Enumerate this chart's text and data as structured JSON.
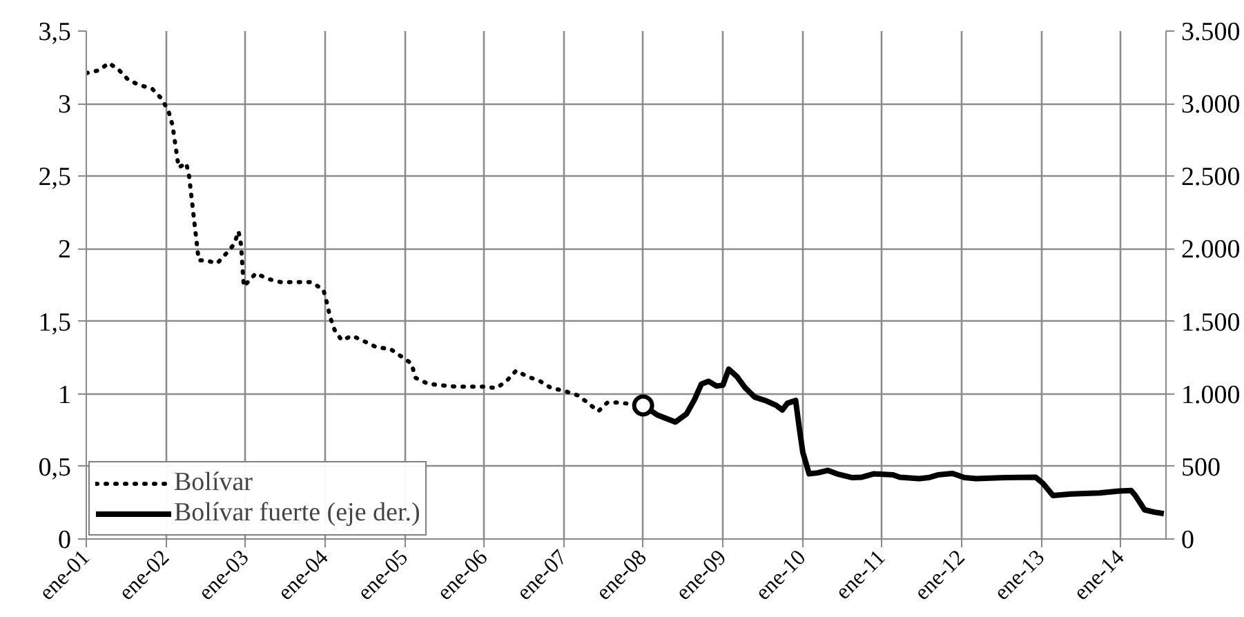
{
  "chart_data": {
    "type": "line",
    "xlim": [
      "2001-01-01",
      "2014-07-28"
    ],
    "ylim": [
      0,
      3.5
    ],
    "y2lim": [
      0,
      3500
    ],
    "xticks": [
      {
        "value": "2001-01-01",
        "label": "ene-01"
      },
      {
        "value": "2002-01-01",
        "label": "ene-02"
      },
      {
        "value": "2003-01-01",
        "label": "ene-03"
      },
      {
        "value": "2004-01-01",
        "label": "ene-04"
      },
      {
        "value": "2005-01-01",
        "label": "ene-05"
      },
      {
        "value": "2006-01-01",
        "label": "ene-06"
      },
      {
        "value": "2007-01-01",
        "label": "ene-07"
      },
      {
        "value": "2008-01-01",
        "label": "ene-08"
      },
      {
        "value": "2009-01-01",
        "label": "ene-09"
      },
      {
        "value": "2010-01-01",
        "label": "ene-10"
      },
      {
        "value": "2011-01-01",
        "label": "ene-11"
      },
      {
        "value": "2012-01-01",
        "label": "ene-12"
      },
      {
        "value": "2013-01-01",
        "label": "ene-13"
      },
      {
        "value": "2014-01-01",
        "label": "ene-14"
      }
    ],
    "yticks": [
      0,
      {
        "value": 0.5,
        "label": "0,5"
      },
      1,
      {
        "value": 1.5,
        "label": "1,5"
      },
      2,
      {
        "value": 2.5,
        "label": "2,5"
      },
      3,
      {
        "value": 3.5,
        "label": "3,5"
      }
    ],
    "y2ticks": [
      0,
      500,
      {
        "value": 1000,
        "label": "1.000"
      },
      {
        "value": 1500,
        "label": "1.500"
      },
      {
        "value": 2000,
        "label": "2.000"
      },
      {
        "value": 2500,
        "label": "2.500"
      },
      {
        "value": 3000,
        "label": "3.000"
      },
      {
        "value": 3500,
        "label": "3.500"
      }
    ],
    "grid": true,
    "legend": "bottom left",
    "series": [
      {
        "name": "Bolívar",
        "color": "#000000",
        "line_style": "dotted",
        "x": [
          "2001-01-01",
          "2001-03-01",
          "2001-04-15",
          "2001-06-01",
          "2001-07-15",
          "2001-09-01",
          "2001-11-01",
          "2001-12-15",
          "2002-01-15",
          "2002-02-01",
          "2002-03-01",
          "2002-04-05",
          "2002-04-18",
          "2002-06-01",
          "2002-07-01",
          "2002-08-25",
          "2002-10-01",
          "2002-11-10",
          "2002-12-01",
          "2002-12-12",
          "2002-12-25",
          "2003-02-18",
          "2003-04-20",
          "2003-06-12",
          "2003-09-01",
          "2003-10-28",
          "2003-12-25",
          "2004-01-10",
          "2004-01-25",
          "2004-02-15",
          "2004-03-18",
          "2004-05-06",
          "2004-07-03",
          "2004-08-27",
          "2004-10-27",
          "2005-02-01",
          "2005-02-21",
          "2005-04-18",
          "2005-06-15",
          "2005-08-21",
          "2006-01-01",
          "2006-02-27",
          "2006-04-15",
          "2006-05-28",
          "2006-07-18",
          "2006-09-12",
          "2006-11-06",
          "2007-01-06",
          "2007-03-06",
          "2007-04-21",
          "2007-06-09",
          "2007-07-21",
          "2007-09-12",
          "2008-01-01"
        ],
        "values": [
          3.21,
          3.23,
          3.28,
          3.23,
          3.16,
          3.13,
          3.1,
          3.03,
          2.94,
          2.85,
          2.56,
          2.59,
          2.5,
          1.92,
          1.92,
          1.9,
          1.96,
          2.03,
          2.12,
          2.03,
          1.74,
          1.83,
          1.79,
          1.77,
          1.77,
          1.77,
          1.72,
          1.63,
          1.53,
          1.44,
          1.37,
          1.4,
          1.36,
          1.32,
          1.31,
          1.21,
          1.11,
          1.07,
          1.06,
          1.05,
          1.05,
          1.04,
          1.09,
          1.16,
          1.12,
          1.09,
          1.04,
          1.02,
          0.99,
          0.94,
          0.88,
          0.94,
          0.94,
          0.92
        ]
      },
      {
        "name": "Bolívar fuerte (eje der.)",
        "color": "#000000",
        "line_style": "solid",
        "axis": "y2",
        "x": [
          "2008-01-01",
          "2008-03-06",
          "2008-05-28",
          "2008-07-18",
          "2008-08-24",
          "2008-09-24",
          "2008-10-27",
          "2008-12-03",
          "2009-01-01",
          "2009-01-28",
          "2009-03-06",
          "2009-04-12",
          "2009-05-27",
          "2009-07-21",
          "2009-09-03",
          "2009-10-01",
          "2009-10-24",
          "2009-12-01",
          "2009-12-18",
          "2010-01-03",
          "2010-02-01",
          "2010-03-12",
          "2010-04-27",
          "2010-06-15",
          "2010-08-18",
          "2010-10-01",
          "2010-11-24",
          "2011-02-21",
          "2011-03-24",
          "2011-06-21",
          "2011-08-03",
          "2011-09-15",
          "2011-11-21",
          "2012-01-15",
          "2012-03-09",
          "2012-07-18",
          "2012-12-06",
          "2013-01-09",
          "2013-02-24",
          "2013-05-18",
          "2013-09-27",
          "2013-12-24",
          "2014-02-18",
          "2014-03-09",
          "2014-04-21",
          "2014-06-06",
          "2014-07-18"
        ],
        "values": [
          920,
          855,
          806,
          862,
          961,
          1067,
          1087,
          1054,
          1060,
          1170,
          1120,
          1044,
          978,
          951,
          921,
          889,
          935,
          955,
          763,
          597,
          449,
          456,
          473,
          446,
          423,
          426,
          449,
          442,
          426,
          416,
          423,
          442,
          452,
          423,
          416,
          423,
          426,
          384,
          300,
          310,
          317,
          330,
          334,
          300,
          201,
          185,
          175
        ]
      },
      {
        "type": "scatter",
        "marker": "circle",
        "color": "#000000",
        "x": [
          "2008-01-01"
        ],
        "values": [
          0.92
        ]
      }
    ]
  }
}
